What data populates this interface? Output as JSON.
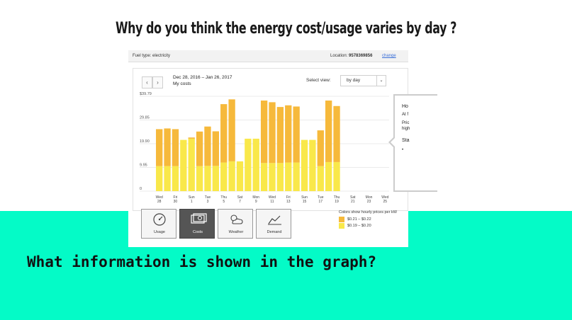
{
  "slide": {
    "title": "Why do you think the energy cost/usage varies by day ?",
    "question": "What information is shown in the graph?"
  },
  "header": {
    "fuel_type": "Fuel type:  electricity",
    "location_label": "Location:",
    "location_value": "9578369856",
    "change_link": "change"
  },
  "controls": {
    "prev": "‹",
    "next": "›",
    "date_range": "Dec 28, 2016 – Jan 26, 2017",
    "subtitle": "My costs",
    "select_view_label": "Select view:",
    "select_view_value": "by day"
  },
  "tooltip": {
    "lines": [
      "Ho",
      "At f",
      "Pric",
      "high",
      "Sta",
      "•"
    ]
  },
  "views": [
    {
      "label": "Usage",
      "icon": "gauge-icon",
      "active": false
    },
    {
      "label": "Costs",
      "icon": "money-icon",
      "active": true
    },
    {
      "label": "Weather",
      "icon": "weather-icon",
      "active": false
    },
    {
      "label": "Demand",
      "icon": "demand-chart-icon",
      "active": false
    }
  ],
  "legend": {
    "title": "Colors show hourly prices per kW",
    "items": [
      {
        "label": "$0.21 – $0.22",
        "color": "#f6b93b"
      },
      {
        "label": "$0.19 – $0.20",
        "color": "#f9e84a"
      }
    ]
  },
  "chart_data": {
    "type": "bar",
    "stacked": true,
    "y_tick_labels": [
      "$39.79",
      "29.85",
      "19.90",
      "9.95",
      "0"
    ],
    "y_ticks": [
      39.79,
      29.85,
      19.9,
      9.95,
      0
    ],
    "ylim": [
      0,
      39.79
    ],
    "x_day_labels": [
      "Wed",
      "Fri",
      "Sun",
      "Tue",
      "Thu",
      "Sat",
      "Mon",
      "Wed",
      "Fri",
      "Sun",
      "Tue",
      "Thu",
      "Sat",
      "Mon",
      "Wed"
    ],
    "x_date_labels": [
      "28",
      "30",
      "1",
      "3",
      "5",
      "7",
      "9",
      "11",
      "13",
      "15",
      "17",
      "19",
      "21",
      "23",
      "25"
    ],
    "categories": [
      "Dec 28",
      "Dec 29",
      "Dec 30",
      "Dec 31",
      "Jan 1",
      "Jan 2",
      "Jan 3",
      "Jan 4",
      "Jan 5",
      "Jan 6",
      "Jan 7",
      "Jan 8",
      "Jan 9",
      "Jan 10",
      "Jan 11",
      "Jan 12",
      "Jan 13",
      "Jan 14",
      "Jan 15",
      "Jan 16",
      "Jan 17",
      "Jan 18",
      "Jan 19",
      "Jan 20",
      "Jan 21",
      "Jan 22",
      "Jan 23",
      "Jan 24",
      "Jan 25"
    ],
    "series": [
      {
        "name": "$0.19 – $0.20",
        "color": "#f9e84a",
        "values": [
          10.5,
          10.5,
          10.5,
          21.5,
          22,
          10.5,
          10.6,
          10.6,
          12,
          12.5,
          12.5,
          22,
          22,
          11.8,
          11.8,
          11.8,
          12,
          12,
          21.5,
          21.5,
          10.5,
          12.2,
          12.2,
          null,
          null,
          null,
          null,
          null,
          null
        ]
      },
      {
        "name": "$0.21 – $0.22",
        "color": "#f6b93b",
        "values": [
          15.5,
          15.8,
          15.5,
          0,
          0.5,
          14.5,
          16.5,
          14.5,
          24.5,
          26,
          0,
          0,
          0,
          26.2,
          25.5,
          23.5,
          24,
          23.5,
          0,
          0,
          15,
          25.8,
          23.5,
          null,
          null,
          null,
          null,
          null,
          null
        ]
      }
    ]
  }
}
